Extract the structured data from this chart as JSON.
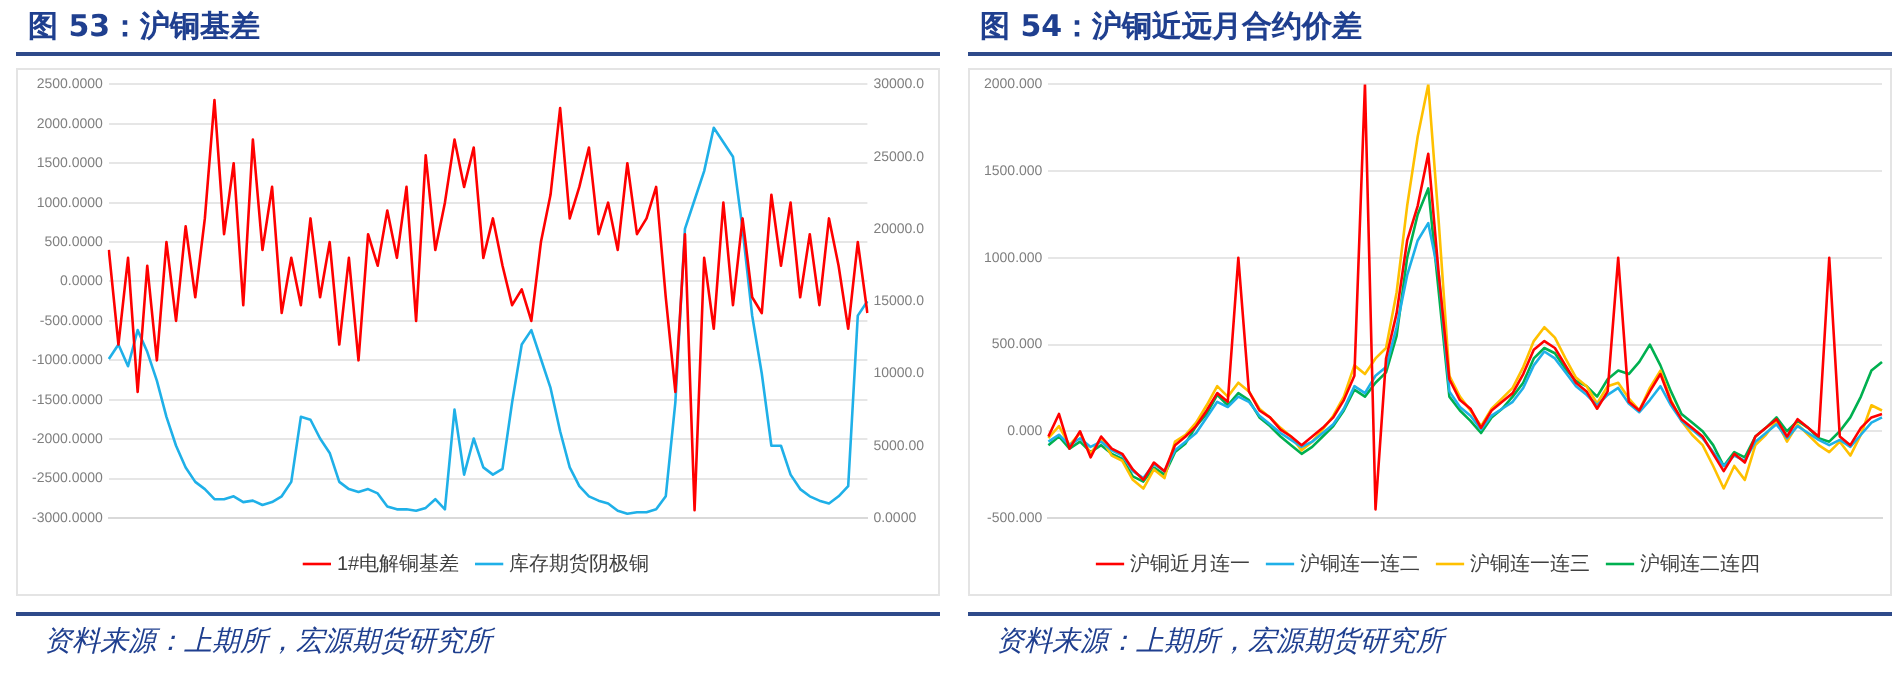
{
  "chart_data": [
    {
      "type": "line",
      "title": "图 53：沪铜基差",
      "categories": [
        null,
        null,
        null,
        null,
        null,
        null,
        null,
        null,
        null,
        null,
        null,
        null,
        null,
        null,
        null,
        null,
        null,
        null,
        null,
        null,
        null,
        null,
        null,
        null,
        null,
        null,
        null,
        null,
        null,
        null,
        null,
        null,
        null,
        null,
        null,
        null,
        null,
        null,
        null,
        null,
        null,
        null,
        null,
        null,
        null,
        null,
        null,
        null,
        null,
        null,
        null,
        null,
        null,
        null,
        null,
        null,
        null,
        null,
        null,
        null,
        null,
        null,
        null,
        null,
        null,
        null,
        null,
        null,
        null,
        null,
        null,
        null,
        null,
        null,
        null,
        null,
        null,
        null,
        null,
        null
      ],
      "series": [
        {
          "name": "1#电解铜基差",
          "color": "#ff0000",
          "values": [
            400,
            -800,
            300,
            -1400,
            200,
            -1000,
            500,
            -500,
            700,
            -200,
            800,
            2300,
            600,
            1500,
            -300,
            1800,
            400,
            1200,
            -400,
            300,
            -300,
            800,
            -200,
            500,
            -800,
            300,
            -1000,
            600,
            200,
            900,
            300,
            1200,
            -500,
            1600,
            400,
            1000,
            1800,
            1200,
            1700,
            300,
            800,
            200,
            -300,
            -100,
            -500,
            500,
            1100,
            2200,
            800,
            1200,
            1700,
            600,
            1000,
            400,
            1500,
            600,
            800,
            1200,
            -200,
            -1400,
            600,
            -2900,
            300,
            -600,
            1000,
            -300,
            800,
            -200,
            -400,
            1100,
            200,
            1000,
            -200,
            600,
            -300,
            800,
            200,
            -600,
            500,
            -400
          ]
        },
        {
          "name": "库存期货阴极铜",
          "color": "#1fb0e8",
          "axis": "y2",
          "values": [
            11000,
            12000,
            10500,
            13000,
            11500,
            9500,
            7000,
            5000,
            3500,
            2500,
            2000,
            1300,
            1300,
            1500,
            1100,
            1200,
            900,
            1100,
            1500,
            2500,
            7000,
            6800,
            5500,
            4500,
            2500,
            2000,
            1800,
            2000,
            1700,
            800,
            600,
            600,
            500,
            700,
            1300,
            600,
            7500,
            3000,
            5500,
            3500,
            3000,
            3400,
            8000,
            12000,
            13000,
            11000,
            9000,
            6000,
            3500,
            2200,
            1500,
            1200,
            1000,
            500,
            300,
            400,
            400,
            600,
            1500,
            8000,
            20000,
            22000,
            24000,
            27000,
            26000,
            25000,
            20000,
            14000,
            10000,
            5000,
            5000,
            3000,
            2000,
            1500,
            1200,
            1000,
            1500,
            2200,
            14000,
            15000
          ]
        }
      ],
      "ylim": [
        -3000,
        2500
      ],
      "yticks": [
        {
          "value": -3000,
          "label": "-3000.0000"
        },
        {
          "value": -2500,
          "label": "-2500.0000"
        },
        {
          "value": -2000,
          "label": "-2000.0000"
        },
        {
          "value": -1500,
          "label": "-1500.0000"
        },
        {
          "value": -1000,
          "label": "-1000.0000"
        },
        {
          "value": -500,
          "label": "-500.0000"
        },
        {
          "value": 0,
          "label": "0.0000"
        },
        {
          "value": 500,
          "label": "500.0000"
        },
        {
          "value": 1000,
          "label": "1000.0000"
        },
        {
          "value": 1500,
          "label": "1500.0000"
        },
        {
          "value": 2000,
          "label": "2000.0000"
        },
        {
          "value": 2500,
          "label": "2500.0000"
        }
      ],
      "y2lim": [
        0,
        30000
      ],
      "y2ticks": [
        {
          "value": 0,
          "label": "0.0000"
        },
        {
          "value": 5000,
          "label": "5000.00"
        },
        {
          "value": 10000,
          "label": "10000.0"
        },
        {
          "value": 15000,
          "label": "15000.0"
        },
        {
          "value": 20000,
          "label": "20000.0"
        },
        {
          "value": 25000,
          "label": "25000.0"
        },
        {
          "value": 30000,
          "label": "30000.0"
        }
      ],
      "grid": "y",
      "legend": "bottom",
      "annotations": [
        "资料来源：上期所，宏源期货研究所"
      ]
    },
    {
      "type": "line",
      "title": "图 54：沪铜近远月合约价差",
      "categories": [
        null,
        null,
        null,
        null,
        null,
        null,
        null,
        null,
        null,
        null,
        null,
        null,
        null,
        null,
        null,
        null,
        null,
        null,
        null,
        null,
        null,
        null,
        null,
        null,
        null,
        null,
        null,
        null,
        null,
        null,
        null,
        null,
        null,
        null,
        null,
        null,
        null,
        null,
        null,
        null,
        null,
        null,
        null,
        null,
        null,
        null,
        null,
        null,
        null,
        null,
        null,
        null,
        null,
        null,
        null,
        null,
        null,
        null,
        null,
        null,
        null,
        null,
        null,
        null,
        null,
        null,
        null,
        null,
        null,
        null,
        null,
        null,
        null,
        null,
        null,
        null,
        null,
        null,
        null,
        null
      ],
      "series": [
        {
          "name": "沪铜近月连一",
          "color": "#ff0000",
          "values": [
            -30,
            100,
            -100,
            0,
            -150,
            -30,
            -100,
            -130,
            -220,
            -280,
            -180,
            -230,
            -80,
            -30,
            30,
            120,
            220,
            170,
            1000,
            230,
            120,
            80,
            10,
            -30,
            -80,
            -30,
            20,
            80,
            180,
            320,
            2000,
            -450,
            420,
            680,
            1100,
            1300,
            1600,
            900,
            300,
            180,
            130,
            20,
            120,
            170,
            220,
            330,
            470,
            520,
            480,
            380,
            280,
            230,
            130,
            230,
            1000,
            170,
            120,
            230,
            330,
            170,
            70,
            20,
            -30,
            -130,
            -230,
            -130,
            -180,
            -30,
            20,
            70,
            -30,
            70,
            20,
            -30,
            1000,
            -30,
            -80,
            20,
            80,
            100
          ]
        },
        {
          "name": "沪铜连一连二",
          "color": "#1fb0e8",
          "values": [
            -60,
            -20,
            -80,
            -40,
            -90,
            -60,
            -110,
            -140,
            -230,
            -270,
            -190,
            -230,
            -110,
            -60,
            -10,
            80,
            170,
            140,
            200,
            170,
            90,
            40,
            -10,
            -50,
            -90,
            -60,
            -10,
            40,
            130,
            260,
            220,
            320,
            370,
            600,
            900,
            1100,
            1200,
            900,
            230,
            140,
            90,
            10,
            90,
            130,
            170,
            250,
            380,
            460,
            420,
            340,
            260,
            210,
            150,
            210,
            250,
            160,
            110,
            180,
            260,
            150,
            60,
            10,
            -40,
            -120,
            -200,
            -140,
            -170,
            -60,
            -10,
            40,
            -40,
            30,
            -10,
            -50,
            -80,
            -50,
            -90,
            -20,
            50,
            80
          ]
        },
        {
          "name": "沪铜连一连三",
          "color": "#ffc000",
          "values": [
            -40,
            30,
            -80,
            -10,
            -130,
            -40,
            -140,
            -170,
            -280,
            -330,
            -220,
            -270,
            -60,
            -20,
            50,
            150,
            260,
            200,
            280,
            230,
            130,
            80,
            20,
            -30,
            -110,
            -60,
            10,
            90,
            200,
            380,
            330,
            420,
            480,
            800,
            1300,
            1700,
            2000,
            1200,
            320,
            200,
            120,
            30,
            130,
            190,
            250,
            370,
            520,
            600,
            540,
            420,
            310,
            260,
            160,
            260,
            280,
            190,
            120,
            250,
            350,
            180,
            60,
            -20,
            -80,
            -200,
            -330,
            -200,
            -280,
            -80,
            -20,
            60,
            -60,
            40,
            -20,
            -80,
            -120,
            -60,
            -140,
            -20,
            150,
            120
          ]
        },
        {
          "name": "沪铜连二连四",
          "color": "#00b050",
          "values": [
            -80,
            -30,
            -100,
            -60,
            -120,
            -80,
            -130,
            -160,
            -260,
            -290,
            -210,
            -250,
            -120,
            -70,
            30,
            100,
            210,
            150,
            220,
            180,
            80,
            30,
            -30,
            -80,
            -130,
            -90,
            -30,
            30,
            120,
            240,
            200,
            280,
            340,
            550,
            1000,
            1250,
            1400,
            800,
            200,
            120,
            60,
            -10,
            80,
            130,
            200,
            280,
            420,
            480,
            450,
            360,
            290,
            260,
            200,
            300,
            350,
            330,
            400,
            500,
            380,
            230,
            100,
            50,
            0,
            -80,
            -200,
            -120,
            -150,
            -30,
            20,
            80,
            0,
            60,
            20,
            -40,
            -60,
            0,
            80,
            200,
            350,
            400
          ]
        }
      ],
      "ylim": [
        -500,
        2000
      ],
      "yticks": [
        {
          "value": -500,
          "label": "-500.000"
        },
        {
          "value": 0,
          "label": "0.000"
        },
        {
          "value": 500,
          "label": "500.000"
        },
        {
          "value": 1000,
          "label": "1000.000"
        },
        {
          "value": 1500,
          "label": "1500.000"
        },
        {
          "value": 2000,
          "label": "2000.000"
        }
      ],
      "grid": "y",
      "legend": "bottom",
      "annotations": [
        "资料来源：上期所，宏源期货研究所"
      ]
    }
  ]
}
